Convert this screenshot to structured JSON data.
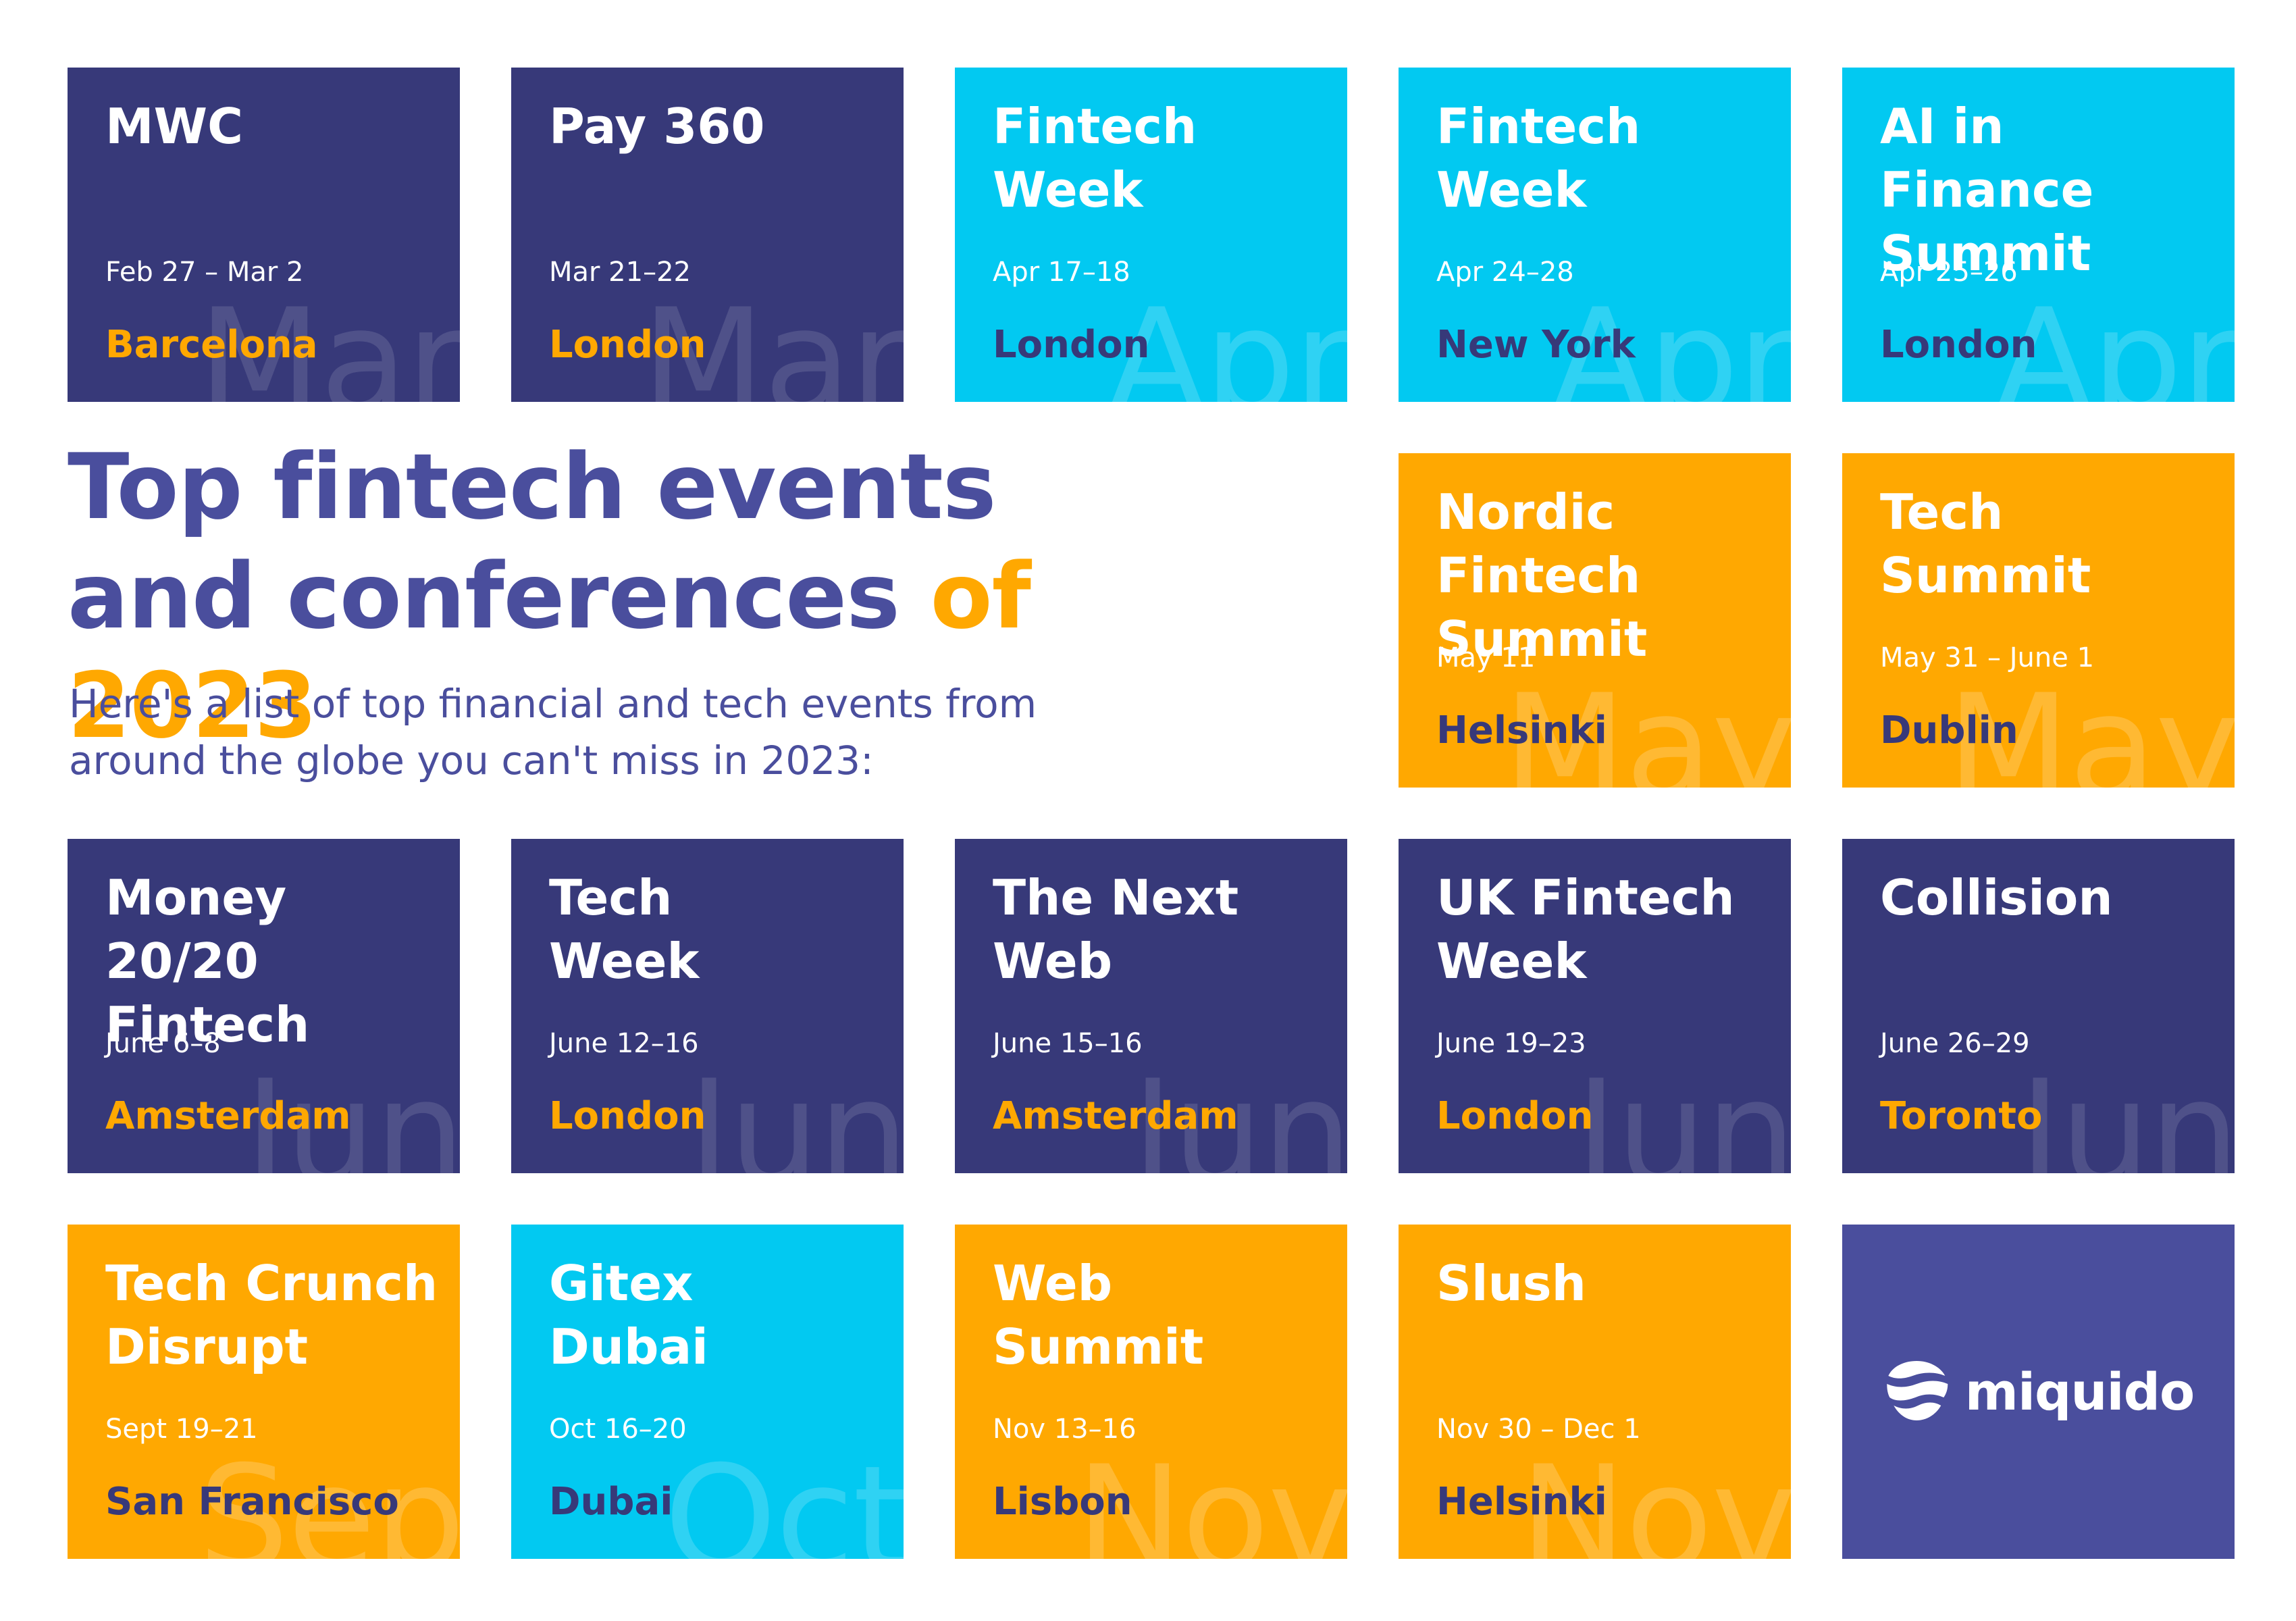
{
  "header": {
    "title_line1": "Top fintech events",
    "title_line2_main": "and conferences",
    "title_line2_accent": "of 2023",
    "subtitle": "Here's a list of top financial and tech events from around the globe you can't miss in 2023:"
  },
  "colors": {
    "navy": "#373979",
    "cyan": "#02c9f1",
    "orange": "#ffa801",
    "purple": "#4a4e9d",
    "white": "#ffffff"
  },
  "events": [
    {
      "title": "MWC",
      "date": "Feb 27 – Mar 2",
      "city": "Barcelona",
      "month": "Mar",
      "color": "dark"
    },
    {
      "title": "Pay 360",
      "date": "Mar 21–22",
      "city": "London",
      "month": "Mar",
      "color": "dark"
    },
    {
      "title": "Fintech\nWeek",
      "date": "Apr 17–18",
      "city": "London",
      "month": "Apr",
      "color": "cyan"
    },
    {
      "title": "Fintech\nWeek",
      "date": "Apr 24–28",
      "city": "New York",
      "month": "Apr",
      "color": "cyan"
    },
    {
      "title": "AI in Finance\nSummit",
      "date": "Apr 25–26",
      "city": "London",
      "month": "Apr",
      "color": "cyan"
    },
    {
      "title": "Nordic Fintech\nSummit",
      "date": "May 11",
      "city": "Helsinki",
      "month": "May",
      "color": "orange"
    },
    {
      "title": "Tech\nSummit",
      "date": "May 31 – June 1",
      "city": "Dublin",
      "month": "May",
      "color": "orange"
    },
    {
      "title": "Money 20/20\nFintech",
      "date": "June 6–8",
      "city": "Amsterdam",
      "month": "Jun",
      "color": "dark"
    },
    {
      "title": "Tech\nWeek",
      "date": "June 12–16",
      "city": "London",
      "month": "Jun",
      "color": "dark"
    },
    {
      "title": "The Next\nWeb",
      "date": "June 15–16",
      "city": "Amsterdam",
      "month": "Jun",
      "color": "dark"
    },
    {
      "title": "UK Fintech\nWeek",
      "date": "June 19–23",
      "city": "London",
      "month": "Jun",
      "color": "dark"
    },
    {
      "title": "Collision",
      "date": "June 26–29",
      "city": "Toronto",
      "month": "Jun",
      "color": "dark"
    },
    {
      "title": "Tech Crunch\nDisrupt",
      "date": "Sept 19–21",
      "city": "San Francisco",
      "month": "Sep",
      "color": "orange"
    },
    {
      "title": "Gitex\nDubai",
      "date": "Oct 16–20",
      "city": "Dubai",
      "month": "Oct",
      "color": "cyan"
    },
    {
      "title": "Web\nSummit",
      "date": "Nov 13–16",
      "city": "Lisbon",
      "month": "Nov",
      "color": "orange"
    },
    {
      "title": "Slush",
      "date": "Nov 30 – Dec 1",
      "city": "Helsinki",
      "month": "Nov",
      "color": "orange"
    }
  ],
  "logo": {
    "text": "miquido",
    "icon": "miquido-logo-icon"
  }
}
